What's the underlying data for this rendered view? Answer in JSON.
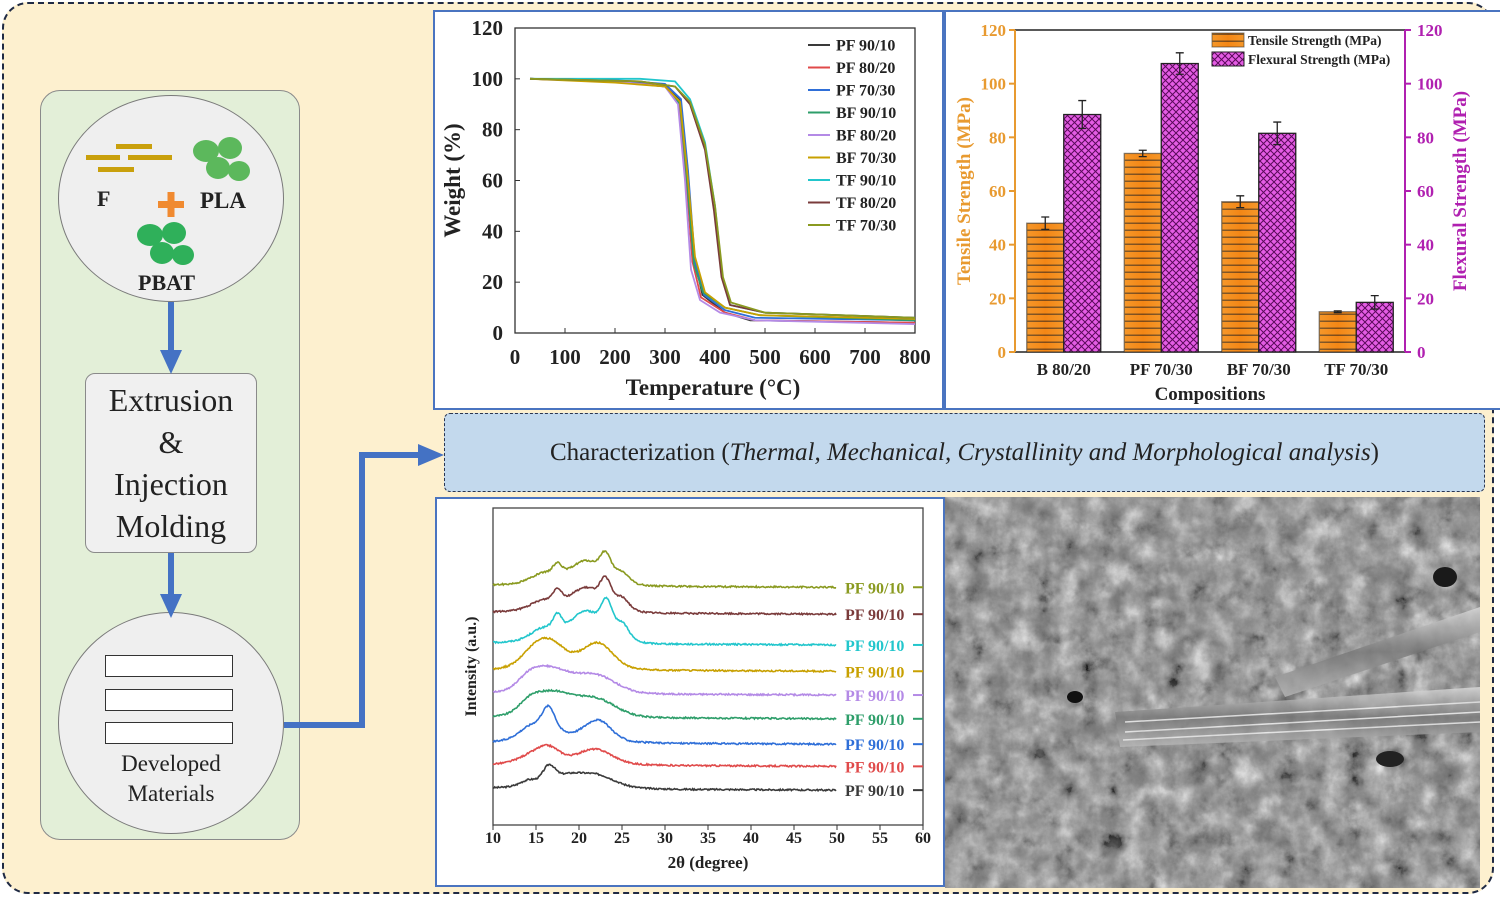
{
  "flow": {
    "inputs": {
      "fiber": "F",
      "pla": "PLA",
      "pbat": "PBAT"
    },
    "process": [
      "Extrusion",
      "&",
      "Injection",
      "Molding"
    ],
    "output": [
      "Developed",
      "Materials"
    ]
  },
  "banner": {
    "prefix": "Characterization (",
    "italic": "Thermal, Mechanical, Crystallinity and Morphological analysis",
    "suffix": ")"
  },
  "colors": {
    "arrow": "#4472c4",
    "tensile": "#f5901e",
    "flexural": "#d633d6",
    "panel_border": "#4a74c0"
  },
  "chart_data": [
    {
      "id": "tga",
      "type": "line",
      "xlabel": "Temperature (°C)",
      "ylabel": "Weight (%)",
      "xlim": [
        0,
        800
      ],
      "ylim": [
        0,
        120
      ],
      "xticks": [
        0,
        100,
        200,
        300,
        400,
        500,
        600,
        700,
        800
      ],
      "yticks": [
        0,
        20,
        40,
        60,
        80,
        100,
        120
      ],
      "legend": "top-right",
      "series": [
        {
          "name": "PF 90/10",
          "color": "#3a3a3a",
          "points": [
            [
              30,
              100
            ],
            [
              200,
              99
            ],
            [
              300,
              97
            ],
            [
              330,
              92
            ],
            [
              345,
              65
            ],
            [
              358,
              30
            ],
            [
              375,
              15
            ],
            [
              420,
              8
            ],
            [
              470,
              5
            ],
            [
              800,
              4
            ]
          ]
        },
        {
          "name": "PF 80/20",
          "color": "#e04a4a",
          "points": [
            [
              30,
              100
            ],
            [
              200,
              99
            ],
            [
              300,
              97.5
            ],
            [
              328,
              91
            ],
            [
              342,
              62
            ],
            [
              355,
              28
            ],
            [
              372,
              14
            ],
            [
              420,
              8
            ],
            [
              480,
              5
            ],
            [
              800,
              4
            ]
          ]
        },
        {
          "name": "PF 70/30",
          "color": "#2f6fd8",
          "points": [
            [
              30,
              100
            ],
            [
              200,
              99.5
            ],
            [
              300,
              98
            ],
            [
              332,
              92
            ],
            [
              346,
              64
            ],
            [
              360,
              28
            ],
            [
              378,
              15
            ],
            [
              420,
              9
            ],
            [
              480,
              6
            ],
            [
              800,
              5
            ]
          ]
        },
        {
          "name": "BF 90/10",
          "color": "#2e9e6a",
          "points": [
            [
              30,
              100
            ],
            [
              200,
              99
            ],
            [
              300,
              97
            ],
            [
              330,
              90
            ],
            [
              344,
              60
            ],
            [
              358,
              27
            ],
            [
              376,
              16
            ],
            [
              420,
              10
            ],
            [
              490,
              7
            ],
            [
              800,
              5
            ]
          ]
        },
        {
          "name": "BF 80/20",
          "color": "#b48ae6",
          "points": [
            [
              30,
              100
            ],
            [
              200,
              99
            ],
            [
              300,
              97
            ],
            [
              326,
              90
            ],
            [
              340,
              60
            ],
            [
              352,
              25
            ],
            [
              370,
              13
            ],
            [
              410,
              8
            ],
            [
              480,
              5
            ],
            [
              800,
              3.5
            ]
          ]
        },
        {
          "name": "BF 70/30",
          "color": "#c8a000",
          "points": [
            [
              30,
              100
            ],
            [
              200,
              98.5
            ],
            [
              300,
              97
            ],
            [
              330,
              91
            ],
            [
              345,
              62
            ],
            [
              360,
              30
            ],
            [
              380,
              16
            ],
            [
              420,
              10
            ],
            [
              490,
              7
            ],
            [
              800,
              5.5
            ]
          ]
        },
        {
          "name": "TF 90/10",
          "color": "#22c6cc",
          "points": [
            [
              30,
              100
            ],
            [
              250,
              100
            ],
            [
              320,
              99
            ],
            [
              350,
              92
            ],
            [
              380,
              75
            ],
            [
              400,
              50
            ],
            [
              415,
              22
            ],
            [
              430,
              11
            ],
            [
              500,
              8
            ],
            [
              800,
              6
            ]
          ]
        },
        {
          "name": "TF 80/20",
          "color": "#7a3b3b",
          "points": [
            [
              30,
              100
            ],
            [
              250,
              99
            ],
            [
              320,
              97
            ],
            [
              350,
              90
            ],
            [
              380,
              72
            ],
            [
              398,
              48
            ],
            [
              413,
              22
            ],
            [
              430,
              11
            ],
            [
              500,
              8
            ],
            [
              800,
              6
            ]
          ]
        },
        {
          "name": "TF 70/30",
          "color": "#8a9a20",
          "points": [
            [
              30,
              100
            ],
            [
              250,
              99
            ],
            [
              320,
              97
            ],
            [
              350,
              91
            ],
            [
              380,
              74
            ],
            [
              400,
              50
            ],
            [
              416,
              22
            ],
            [
              432,
              12
            ],
            [
              500,
              8
            ],
            [
              800,
              6
            ]
          ]
        }
      ]
    },
    {
      "id": "mechanical",
      "type": "bar",
      "xlabel": "Compositions",
      "ylabel": "Tensile Strength (MPa)",
      "y2label": "Flexural Strength (MPa)",
      "ylim": [
        0,
        120
      ],
      "yticks": [
        0,
        20,
        40,
        60,
        80,
        100,
        120
      ],
      "categories": [
        "B 80/20",
        "PF 70/30",
        "BF 70/30",
        "TF 70/30"
      ],
      "legend": "top-right",
      "series": [
        {
          "name": "Tensile Strength (MPa)",
          "color": "#f5901e",
          "values": [
            48,
            74,
            56,
            15
          ],
          "errors": [
            2.3,
            1.2,
            2.2,
            0.3
          ]
        },
        {
          "name": "Flexural Strength (MPa)",
          "color": "#d633d6",
          "values": [
            88.5,
            107.5,
            81.5,
            18.5
          ],
          "errors": [
            5.2,
            4,
            4.2,
            2.5
          ]
        }
      ]
    },
    {
      "id": "xrd",
      "type": "line",
      "xlabel": "2θ (degree)",
      "ylabel": "Intensity (a.u.)",
      "xlim": [
        10,
        60
      ],
      "xticks": [
        10,
        15,
        20,
        25,
        30,
        35,
        40,
        45,
        50,
        55,
        60
      ],
      "series": [
        {
          "name": "PF 90/10",
          "color": "#3a3a3a",
          "offset": 11,
          "peaks": [
            [
              14.2,
              2,
              1
            ],
            [
              16.5,
              5.5,
              0.7
            ],
            [
              18.5,
              2.5,
              1.5
            ],
            [
              22,
              3.5,
              2
            ]
          ]
        },
        {
          "name": "PF 90/10",
          "color": "#e04a4a",
          "offset": 18.5,
          "peaks": [
            [
              14.5,
              2.5,
              1.5
            ],
            [
              16.5,
              4,
              1.2
            ],
            [
              22,
              4,
              1.8
            ]
          ]
        },
        {
          "name": "PF 90/10",
          "color": "#2f6fd8",
          "offset": 25.5,
          "peaks": [
            [
              14.5,
              3,
              1.5
            ],
            [
              16.5,
              7,
              0.7
            ],
            [
              16,
              3,
              2
            ],
            [
              22.2,
              6.5,
              1.5
            ]
          ]
        },
        {
          "name": "PF 90/10",
          "color": "#2e9e6a",
          "offset": 33.5,
          "peaks": [
            [
              14.2,
              3,
              1.2
            ],
            [
              16.8,
              7,
              2.2
            ],
            [
              22,
              5,
              2.2
            ]
          ]
        },
        {
          "name": "PF 90/10",
          "color": "#b48ae6",
          "offset": 41,
          "peaks": [
            [
              14.2,
              3,
              1.3
            ],
            [
              16.5,
              7,
              2.2
            ],
            [
              22,
              5,
              2.2
            ]
          ]
        },
        {
          "name": "PF 90/10",
          "color": "#c8a000",
          "offset": 48.5,
          "peaks": [
            [
              14.5,
              3,
              1.5
            ],
            [
              16.5,
              8,
              1.8
            ],
            [
              22.2,
              8,
              1.7
            ]
          ]
        },
        {
          "name": "PF 90/10",
          "color": "#22c6cc",
          "offset": 56.8,
          "peaks": [
            [
              16,
              4,
              1.5
            ],
            [
              17.5,
              5,
              0.5
            ],
            [
              20.5,
              7,
              1.6
            ],
            [
              23.2,
              9,
              0.6
            ],
            [
              22.5,
              4,
              2
            ],
            [
              25,
              5,
              0.8
            ]
          ]
        },
        {
          "name": "PF 90/10",
          "color": "#7a3b3b",
          "offset": 66.5,
          "peaks": [
            [
              16,
              3,
              1.5
            ],
            [
              17.5,
              4,
              0.5
            ],
            [
              20.5,
              5,
              1.6
            ],
            [
              23.1,
              7,
              0.6
            ],
            [
              22.5,
              3,
              2
            ],
            [
              25,
              3.5,
              0.8
            ]
          ]
        },
        {
          "name": "PF 90/10",
          "color": "#8a9a20",
          "offset": 75,
          "peaks": [
            [
              16,
              3,
              1.5
            ],
            [
              17.5,
              3.5,
              0.5
            ],
            [
              20.5,
              5,
              1.6
            ],
            [
              23.1,
              6.5,
              0.6
            ],
            [
              22.5,
              3,
              2
            ],
            [
              25,
              3,
              0.8
            ]
          ]
        }
      ]
    }
  ]
}
